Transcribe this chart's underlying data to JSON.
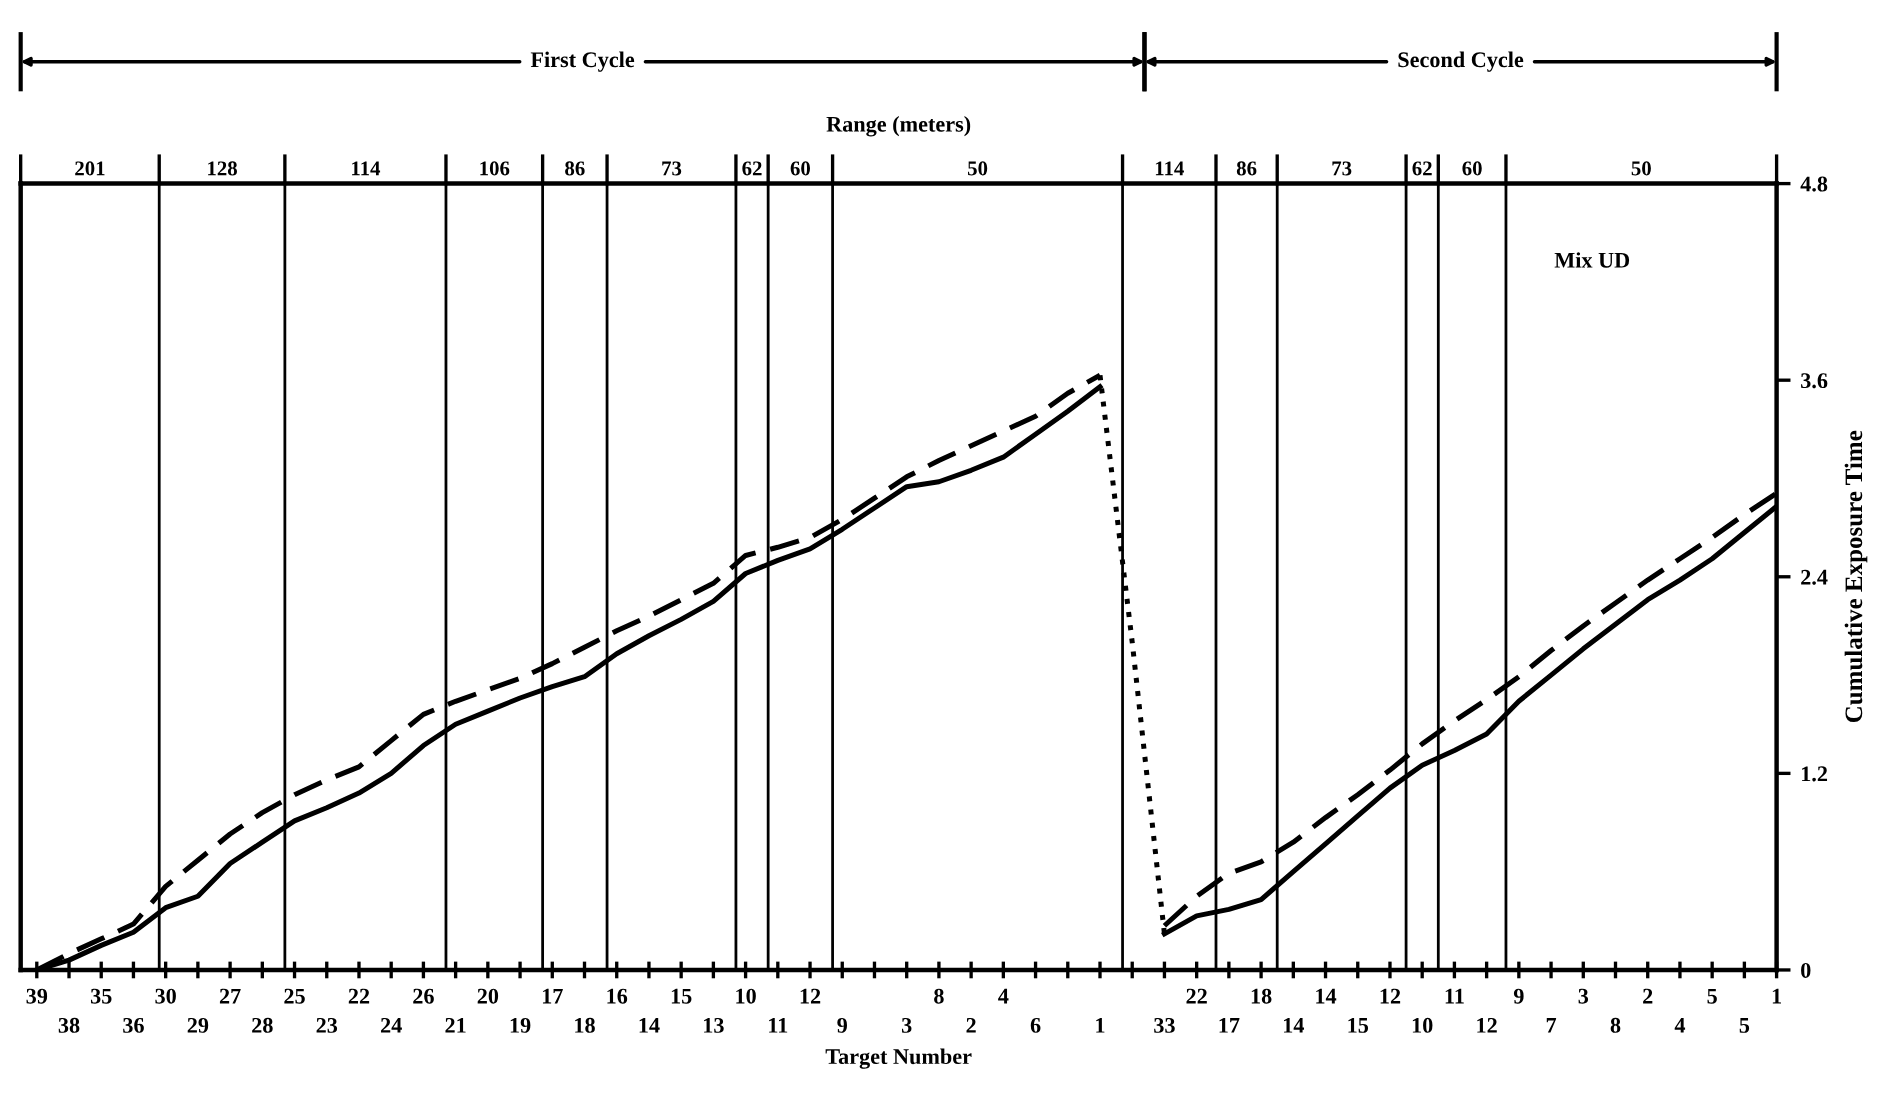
{
  "chart_data": {
    "type": "line",
    "subtitle": "Range (meters)",
    "xlabel": "Target Number",
    "ylabel": "Cumulative Exposure Time",
    "annotations": [
      "First Cycle",
      "Second Cycle",
      "201",
      "128",
      "114",
      "106",
      "86",
      "73",
      "62",
      "60",
      "50",
      "114",
      "86",
      "73",
      "62",
      "60",
      "50",
      "Mix UD"
    ],
    "categories": [
      "39",
      "38",
      "35",
      "36",
      "30",
      "29",
      "27",
      "28",
      "25",
      "23",
      "22",
      "24",
      "26",
      "21",
      "20",
      "19",
      "17",
      "18",
      "16",
      "14",
      "15",
      "13",
      "10",
      "11",
      "12",
      "9",
      null,
      "3",
      "8",
      "2",
      "4",
      "6",
      null,
      "1",
      null,
      "33",
      "22",
      "17",
      "18",
      "14",
      "14",
      "15",
      "12",
      "10",
      "11",
      "12",
      "9",
      "7",
      "3",
      "8",
      "2",
      "4",
      "5",
      "5",
      "1"
    ],
    "ylim": [
      0,
      4.8
    ],
    "yticks": [
      0,
      1.2,
      2.4,
      3.6,
      4.8
    ],
    "series": [
      {
        "color": "#000000",
        "line_style": "solid",
        "values": [
          0.0,
          0.06,
          0.15,
          0.23,
          0.38,
          0.45,
          0.65,
          0.78,
          0.91,
          0.99,
          1.08,
          1.2,
          1.37,
          1.5,
          1.58,
          1.66,
          1.73,
          1.79,
          1.93,
          2.04,
          2.14,
          2.25,
          2.42,
          2.5,
          2.57,
          2.69,
          2.82,
          2.95,
          2.98,
          3.05,
          3.13,
          3.27,
          3.41,
          3.56,
          null,
          null,
          null,
          null,
          null,
          null,
          null,
          null,
          null,
          null,
          null,
          null,
          null,
          null,
          null,
          null,
          null,
          null,
          null,
          null,
          null
        ]
      },
      {
        "color": "#000000",
        "line_style": "dashed",
        "values": [
          0.0,
          0.1,
          0.19,
          0.28,
          0.51,
          0.67,
          0.83,
          0.96,
          1.07,
          1.16,
          1.24,
          1.4,
          1.56,
          1.64,
          1.71,
          1.78,
          1.87,
          1.97,
          2.07,
          2.16,
          2.26,
          2.36,
          2.53,
          2.58,
          2.64,
          2.75,
          2.88,
          3.01,
          3.11,
          3.2,
          3.29,
          3.38,
          3.52,
          3.63,
          null,
          null,
          null,
          null,
          null,
          null,
          null,
          null,
          null,
          null,
          null,
          null,
          null,
          null,
          null,
          null,
          null,
          null,
          null,
          null,
          null
        ]
      },
      {
        "color": "#000000",
        "line_style": "dotted",
        "values": [
          null,
          null,
          null,
          null,
          null,
          null,
          null,
          null,
          null,
          null,
          null,
          null,
          null,
          null,
          null,
          null,
          null,
          null,
          null,
          null,
          null,
          null,
          null,
          null,
          null,
          null,
          null,
          null,
          null,
          null,
          null,
          null,
          null,
          3.63,
          2.0,
          0.22,
          null,
          null,
          null,
          null,
          null,
          null,
          null,
          null,
          null,
          null,
          null,
          null,
          null,
          null,
          null,
          null,
          null,
          null,
          null
        ]
      },
      {
        "color": "#000000",
        "line_style": "solid",
        "values": [
          null,
          null,
          null,
          null,
          null,
          null,
          null,
          null,
          null,
          null,
          null,
          null,
          null,
          null,
          null,
          null,
          null,
          null,
          null,
          null,
          null,
          null,
          null,
          null,
          null,
          null,
          null,
          null,
          null,
          null,
          null,
          null,
          null,
          null,
          null,
          0.22,
          0.33,
          0.37,
          0.43,
          0.6,
          0.77,
          0.94,
          1.11,
          1.25,
          1.34,
          1.44,
          1.64,
          1.8,
          1.96,
          2.11,
          2.26,
          2.38,
          2.51,
          2.67,
          2.83
        ]
      },
      {
        "color": "#000000",
        "line_style": "dashed",
        "values": [
          null,
          null,
          null,
          null,
          null,
          null,
          null,
          null,
          null,
          null,
          null,
          null,
          null,
          null,
          null,
          null,
          null,
          null,
          null,
          null,
          null,
          null,
          null,
          null,
          null,
          null,
          null,
          null,
          null,
          null,
          null,
          null,
          null,
          null,
          null,
          0.27,
          0.45,
          0.59,
          0.66,
          0.78,
          0.93,
          1.07,
          1.22,
          1.38,
          1.52,
          1.65,
          1.79,
          1.95,
          2.1,
          2.24,
          2.38,
          2.51,
          2.64,
          2.78,
          2.91
        ]
      }
    ]
  }
}
